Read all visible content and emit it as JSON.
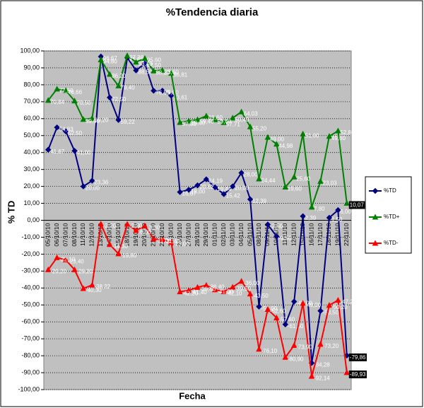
{
  "chart_data": {
    "type": "line",
    "title": "%Tendencia diaria",
    "xlabel": "Fecha",
    "ylabel": "% TD",
    "categories": [
      "05/10/10",
      "06/10/10",
      "07/10/10",
      "08/10/10",
      "11/10/10",
      "12/10/10",
      "13/10/10",
      "14/10/10",
      "15/10/10",
      "18/10/10",
      "19/10/10",
      "20/10/10",
      "21/10/10",
      "22/10/10",
      "25/10/10",
      "26/10/10",
      "27/10/10",
      "28/10/10",
      "29/10/10",
      "01/11/10",
      "02/11/10",
      "03/11/10",
      "04/11/10",
      "05/11/10",
      "08/11/10",
      "09/11/10",
      "10/11/10",
      "11/11/10",
      "12/11/10",
      "15/11/10",
      "16/11/10",
      "17/11/10",
      "18/11/10",
      "19/11/10",
      "22/11/10"
    ],
    "series": [
      {
        "name": "%TD",
        "color": "#000080",
        "marker": "diamond",
        "values": [
          41.67,
          54.83,
          52.5,
          41.0,
          20.0,
          23.36,
          96.67,
          72.5,
          59.22,
          96.0,
          88.5,
          92.5,
          76.5,
          76.5,
          73.61,
          16.67,
          18.0,
          20.62,
          24.19,
          19.44,
          15.42,
          20.0,
          28.0,
          12.39,
          -51.0,
          -2.5,
          -9.5,
          -61.5,
          -48.0,
          2.39,
          -84.28,
          -53.5,
          1.5,
          6.0,
          -79.86
        ],
        "value_labels": [
          "41,67",
          "54,83",
          "52,50",
          "41,00",
          "20,00",
          "23,36",
          "96,67",
          "72,50",
          "59,22",
          "96,00",
          "88,50",
          "92,50",
          "76,50",
          "76,50",
          "73,61",
          "16,67",
          "18,00",
          "20,62",
          "24,19",
          "19,44",
          "15,42",
          "20,00",
          "28,00",
          "12,39",
          "-51,00",
          "-2,50",
          "-9,50",
          "-61,50",
          "-48,00",
          "2,39",
          "-84,28",
          "-53,50",
          "1,50",
          "6,00",
          "-79,86"
        ]
      },
      {
        "name": "%TD+",
        "color": "#008000",
        "marker": "triangle",
        "values": [
          70.84,
          77.5,
          76.66,
          70.5,
          59.6,
          60.2,
          94.8,
          86.2,
          79.4,
          97.2,
          93.4,
          95.6,
          88.2,
          88.6,
          86.81,
          57.8,
          58.6,
          59.4,
          61.6,
          59.4,
          57.71,
          60.4,
          64.03,
          55.2,
          24.44,
          49.0,
          44.98,
          19.6,
          25.6,
          51.0,
          7.8,
          23.03,
          49.6,
          52.8,
          10.07
        ],
        "value_labels": [
          "70,84",
          "77,50",
          "76,66",
          "70,50",
          "59,60",
          "60,20",
          "94,80",
          "86,20",
          "79,40",
          "97,20",
          "93,40",
          "95,60",
          "88,20",
          "88,60",
          "86,81",
          "57,80",
          "58,60",
          "59,40",
          "61,60",
          "59,40",
          "57,71",
          "60,40",
          "64,03",
          "55,20",
          "24,44",
          "49,00",
          "44,98",
          "19,60",
          "25,60",
          "51,00",
          "7,80",
          "23,03",
          "49,60",
          "52,80",
          "10,07"
        ]
      },
      {
        "name": "%TD-",
        "color": "#ff0000",
        "marker": "triangle",
        "values": [
          -29.2,
          -22.1,
          -23.4,
          -29.2,
          -40.3,
          -38.22,
          -2.2,
          -14.3,
          -19.8,
          -2.3,
          -6.0,
          -3.3,
          -11.0,
          -11.4,
          -13.0,
          -42.2,
          -41.4,
          -39.6,
          -38.4,
          -41.0,
          -42.1,
          -39.5,
          -36.0,
          -43.5,
          -76.1,
          -52.6,
          -57.6,
          -80.9,
          -73.9,
          -49.0,
          -92.14,
          -73.2,
          -50.2,
          -47.2,
          -89.93
        ],
        "value_labels": [
          "-29,20",
          "-22,10",
          "-23,40",
          "-29,20",
          "-40,30",
          "-38,22",
          "-2,20",
          "-14,30",
          "-19,80",
          "-2,30",
          "-6,00",
          "-3,30",
          "-11,00",
          "-11,40",
          "-13,00",
          "-42,20",
          "-41,40",
          "-39,60",
          "-38,40",
          "-41,00",
          "-42,10",
          "-39,50",
          "-36,00",
          "-43,50",
          "-76,10",
          "-52,60",
          "-57,60",
          "-80,90",
          "-73,90",
          "-49,00",
          "-92,14",
          "-73,20",
          "-50,20",
          "-47,20",
          "-89,93"
        ]
      }
    ],
    "ylim": [
      -100,
      100
    ],
    "yticks": [
      {
        "value": 100,
        "label": "100,00"
      },
      {
        "value": 90,
        "label": "90,00"
      },
      {
        "value": 80,
        "label": "80,00"
      },
      {
        "value": 70,
        "label": "70,00"
      },
      {
        "value": 60,
        "label": "60,00"
      },
      {
        "value": 50,
        "label": "50,00"
      },
      {
        "value": 40,
        "label": "40,00"
      },
      {
        "value": 30,
        "label": "30,00"
      },
      {
        "value": 20,
        "label": "20,00"
      },
      {
        "value": 10,
        "label": "10,00"
      },
      {
        "value": 0,
        "label": "0,00"
      },
      {
        "value": -10,
        "label": "-10,00"
      },
      {
        "value": -20,
        "label": "-20,00"
      },
      {
        "value": -30,
        "label": "-30,00"
      },
      {
        "value": -40,
        "label": "-40,00"
      },
      {
        "value": -50,
        "label": "-50,00"
      },
      {
        "value": -60,
        "label": "-60,00"
      },
      {
        "value": -70,
        "label": "-70,00"
      },
      {
        "value": -80,
        "label": "-80,00"
      },
      {
        "value": -90,
        "label": "-90,00"
      },
      {
        "value": -100,
        "label": "-100,00"
      }
    ],
    "grid": true,
    "legend": "right",
    "plot_background": "#c0c0c0"
  }
}
